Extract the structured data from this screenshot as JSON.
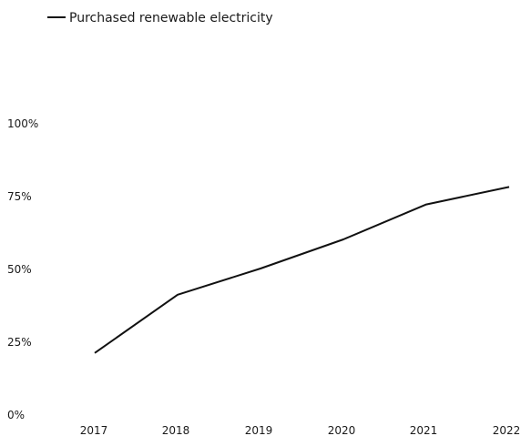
{
  "chart_data": {
    "type": "line",
    "title": "",
    "xlabel": "",
    "ylabel": "",
    "x": [
      "2017",
      "2018",
      "2019",
      "2020",
      "2021",
      "2022"
    ],
    "series": [
      {
        "name": "Purchased renewable electricity",
        "values": [
          21,
          41,
          50,
          60,
          72,
          78
        ],
        "color": "#111111"
      }
    ],
    "ylim": [
      0,
      100
    ],
    "y_ticks": [
      "0%",
      "25%",
      "50%",
      "75%",
      "100%"
    ],
    "grid": false,
    "legend_position": "top-left"
  }
}
